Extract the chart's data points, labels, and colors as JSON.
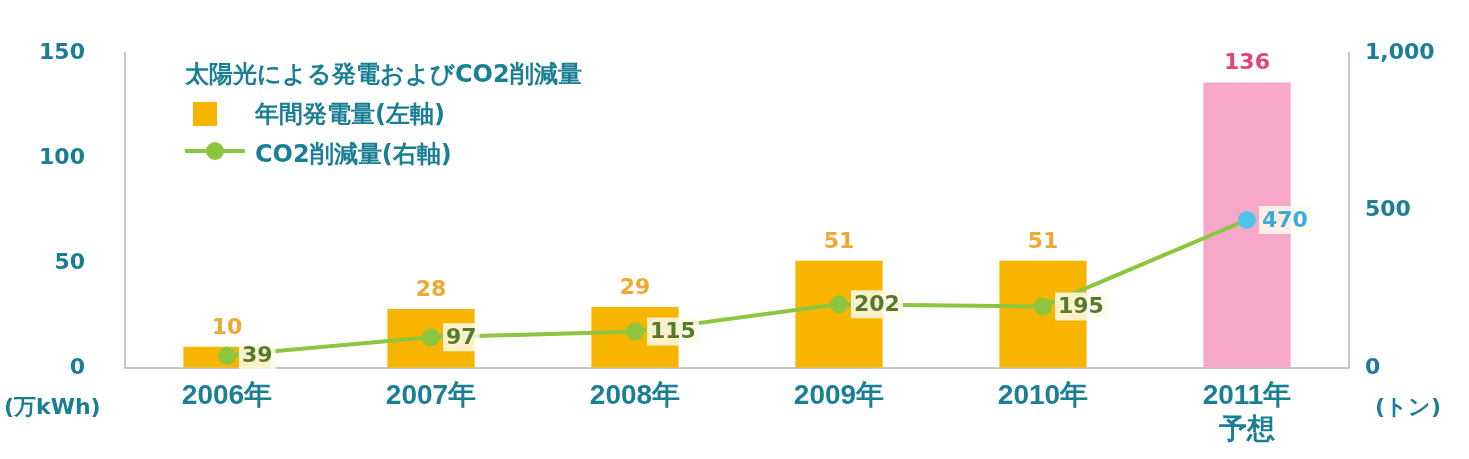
{
  "chart_data": {
    "type": "bar",
    "legend_title": "太陽光による発電およびCO2削減量",
    "ylabel": "(万kWh)",
    "y2label": "(トン)",
    "categories": [
      "2006年",
      "2007年",
      "2008年",
      "2009年",
      "2010年",
      "2011年予想"
    ],
    "series": [
      {
        "name": "年間発電量(左軸)",
        "color": "#f7b500",
        "colors": [
          "#f7b500",
          "#f7b500",
          "#f7b500",
          "#f7b500",
          "#f7b500",
          "#f7a8c8"
        ],
        "values": [
          10,
          28,
          29,
          51,
          51,
          136
        ]
      },
      {
        "name": "CO2削減量(右軸)",
        "type": "line",
        "axis": "y2",
        "color": "#8cc63e",
        "colors": [
          "#8cc63e",
          "#8cc63e",
          "#8cc63e",
          "#8cc63e",
          "#8cc63e",
          "#4fc3e8"
        ],
        "values": [
          39,
          97,
          115,
          202,
          195,
          470
        ]
      }
    ],
    "ylim": [
      0,
      150
    ],
    "yticks": [
      0,
      50,
      100,
      150
    ],
    "y2lim": [
      0,
      1000
    ],
    "y2ticks": [
      0,
      500,
      {
        "value": 1000,
        "label": "1,000"
      }
    ],
    "data_labels": true,
    "grid": false,
    "legend": "top left",
    "marker": "circle",
    "line_style": "solid"
  }
}
